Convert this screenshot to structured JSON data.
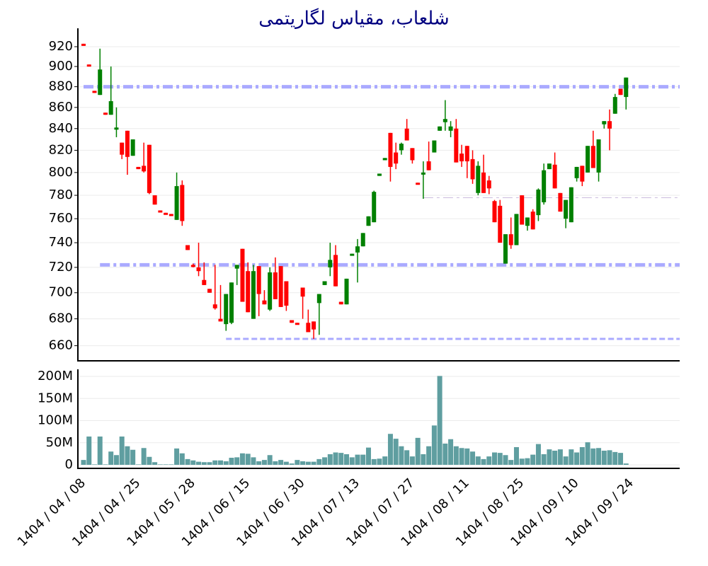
{
  "chart_data": {
    "type": "candlestick",
    "title": "شلعاب، مقیاس لگاریتمی",
    "title_color": "#000080",
    "categories": [
      "1404 / 04 / 08",
      null,
      null,
      null,
      null,
      null,
      null,
      null,
      null,
      null,
      "1404 / 04 / 25",
      null,
      null,
      null,
      null,
      null,
      null,
      null,
      null,
      null,
      "1404 / 05 / 28",
      null,
      null,
      null,
      null,
      null,
      null,
      null,
      null,
      null,
      "1404 / 06 / 15",
      null,
      null,
      null,
      null,
      null,
      null,
      null,
      null,
      null,
      "1404 / 06 / 30",
      null,
      null,
      null,
      null,
      null,
      null,
      null,
      null,
      null,
      "1404 / 07 / 13",
      null,
      null,
      null,
      null,
      null,
      null,
      null,
      null,
      null,
      "1404 / 07 / 27",
      null,
      null,
      null,
      null,
      null,
      null,
      null,
      null,
      null,
      "1404 / 08 / 11",
      null,
      null,
      null,
      null,
      null,
      null,
      null,
      null,
      null,
      "1404 / 08 / 25",
      null,
      null,
      null,
      null,
      null,
      null,
      null,
      null,
      null,
      "1404 / 09 / 10",
      null,
      null,
      null,
      null,
      null,
      null,
      null,
      null,
      null,
      "1404 / 09 / 24"
    ],
    "open": [
      923,
      902,
      876,
      872,
      855,
      853,
      840,
      827,
      838,
      815,
      805,
      806,
      825,
      780,
      767,
      765,
      764,
      759,
      789,
      738,
      722,
      720,
      710,
      703,
      691,
      680,
      676,
      677,
      719,
      735,
      717,
      680,
      721,
      694,
      687,
      716,
      721,
      709,
      679,
      677,
      704,
      677,
      678,
      692,
      706,
      720,
      730,
      693,
      691,
      730,
      732,
      737,
      754,
      757,
      797,
      811,
      836,
      818,
      820,
      840,
      822,
      791,
      799,
      810,
      818,
      838,
      846,
      838,
      840,
      817,
      824,
      812,
      782,
      800,
      793,
      775,
      771,
      723,
      747,
      738,
      780,
      754,
      766,
      763,
      774,
      803,
      807,
      782,
      760,
      757,
      795,
      806,
      800,
      824,
      800,
      844,
      847,
      854,
      878,
      870,
      null
    ],
    "high": [
      923,
      902,
      876,
      918,
      855,
      900,
      860,
      827,
      838,
      830,
      805,
      827,
      825,
      780,
      767,
      765,
      764,
      800,
      793,
      738,
      723,
      740,
      724,
      703,
      722,
      706,
      699,
      708,
      722,
      735,
      724,
      722,
      721,
      702,
      720,
      728,
      721,
      709,
      679,
      677,
      704,
      687,
      678,
      699,
      709,
      740,
      738,
      693,
      711,
      731,
      743,
      748,
      762,
      784,
      799,
      813,
      836,
      827,
      827,
      849,
      822,
      791,
      810,
      828,
      829,
      842,
      867,
      847,
      849,
      825,
      824,
      820,
      810,
      816,
      797,
      776,
      776,
      747,
      761,
      764,
      780,
      761,
      768,
      786,
      808,
      808,
      818,
      782,
      776,
      787,
      805,
      806,
      824,
      838,
      830,
      847,
      858,
      873,
      878,
      889,
      null
    ],
    "low": [
      921,
      901,
      874,
      872,
      853,
      853,
      832,
      812,
      798,
      815,
      803,
      800,
      781,
      772,
      766,
      764,
      763,
      759,
      754,
      734,
      720,
      713,
      706,
      700,
      687,
      678,
      671,
      676,
      706,
      693,
      685,
      680,
      682,
      691,
      686,
      695,
      689,
      686,
      677,
      676,
      680,
      670,
      665,
      668,
      706,
      713,
      705,
      691,
      691,
      730,
      708,
      737,
      754,
      757,
      797,
      811,
      792,
      803,
      816,
      829,
      808,
      790,
      777,
      802,
      818,
      838,
      838,
      832,
      809,
      805,
      795,
      790,
      780,
      782,
      781,
      757,
      740,
      723,
      735,
      738,
      755,
      750,
      751,
      758,
      772,
      803,
      786,
      766,
      752,
      757,
      792,
      788,
      800,
      804,
      792,
      840,
      820,
      854,
      872,
      858,
      null
    ],
    "close": [
      921,
      901,
      874,
      897,
      853,
      866,
      841,
      816,
      814,
      830,
      803,
      801,
      782,
      772,
      766,
      764,
      763,
      788,
      758,
      734,
      721,
      717,
      706,
      700,
      688,
      678,
      699,
      708,
      722,
      693,
      685,
      717,
      699,
      691,
      716,
      695,
      689,
      690,
      677,
      676,
      697,
      670,
      672,
      699,
      709,
      726,
      705,
      691,
      711,
      731,
      737,
      748,
      762,
      783,
      799,
      813,
      805,
      808,
      826,
      829,
      811,
      790,
      800,
      802,
      829,
      842,
      849,
      842,
      809,
      810,
      810,
      794,
      806,
      782,
      786,
      757,
      740,
      747,
      738,
      764,
      755,
      761,
      751,
      785,
      802,
      808,
      786,
      766,
      776,
      787,
      805,
      792,
      824,
      804,
      830,
      847,
      840,
      870,
      872,
      889,
      null
    ],
    "up_color": "#008000",
    "down_color": "#ff0000",
    "ylim": [
      649,
      939
    ],
    "log_scale": true,
    "yticks": [
      660,
      680,
      700,
      720,
      740,
      760,
      780,
      800,
      820,
      840,
      860,
      880,
      900,
      920
    ],
    "grid": true,
    "hlines": [
      {
        "value": 880,
        "start": 0,
        "color": "#aaaaff",
        "style": "dashdot",
        "width": 5
      },
      {
        "value": 722,
        "start": 3,
        "color": "#aaaaff",
        "style": "dashdot",
        "width": 5
      },
      {
        "value": 665,
        "start": 26,
        "color": "#aaaaff",
        "style": "dash",
        "width": 3
      },
      {
        "value": 778,
        "start": 62,
        "color": "#c8b8dc",
        "style": "dashdot",
        "width": 1
      }
    ],
    "volume": {
      "color": "#5f9ea0",
      "values": [
        11000000,
        64000000,
        1000000,
        64000000,
        1000000,
        30000000,
        22000000,
        64000000,
        42000000,
        34000000,
        1000000,
        38000000,
        18000000,
        6000000,
        1000000,
        1000000,
        1000000,
        37000000,
        26000000,
        13000000,
        10000000,
        7000000,
        6000000,
        6000000,
        10000000,
        10000000,
        8000000,
        16000000,
        17000000,
        26000000,
        25000000,
        17000000,
        8000000,
        11000000,
        22000000,
        8000000,
        11000000,
        7000000,
        3000000,
        11000000,
        8000000,
        7000000,
        7000000,
        13000000,
        17000000,
        24000000,
        28000000,
        27000000,
        24000000,
        17000000,
        23000000,
        23000000,
        39000000,
        13000000,
        14000000,
        19000000,
        70000000,
        59000000,
        42000000,
        33000000,
        19000000,
        61000000,
        24000000,
        42000000,
        89000000,
        201000000,
        48000000,
        58000000,
        42000000,
        38000000,
        37000000,
        30000000,
        19000000,
        13000000,
        19000000,
        28000000,
        27000000,
        22000000,
        11000000,
        40000000,
        14000000,
        15000000,
        23000000,
        47000000,
        24000000,
        35000000,
        32000000,
        35000000,
        19000000,
        35000000,
        28000000,
        40000000,
        51000000,
        37000000,
        38000000,
        32000000,
        33000000,
        29000000,
        27000000,
        3000000,
        null
      ],
      "ylim": [
        -8000000,
        216000000
      ],
      "yticks": [
        0,
        {
          "value": 50000000,
          "label": "50M"
        },
        {
          "value": 100000000,
          "label": "100M"
        },
        {
          "value": 150000000,
          "label": "150M"
        },
        {
          "value": 200000000,
          "label": "200M"
        }
      ],
      "grid": true
    }
  }
}
